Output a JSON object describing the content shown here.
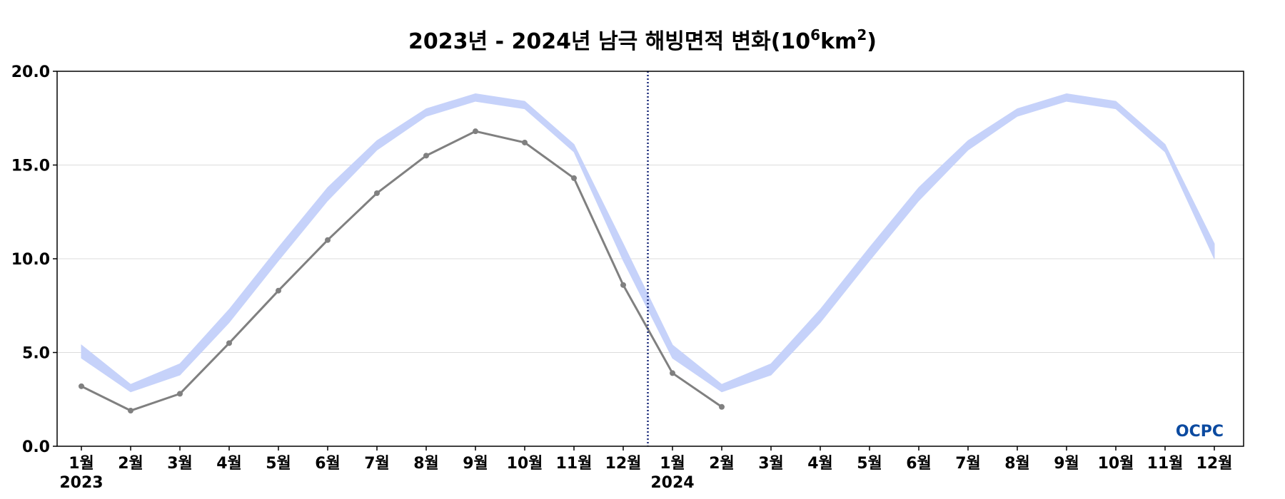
{
  "chart_data": {
    "type": "line",
    "title_parts": {
      "main": "2023년 - 2024년 남극 해빙면적 변화(10",
      "sup1": "6",
      "mid": "km",
      "sup2": "2",
      "end": ")"
    },
    "x_month_labels": [
      "1월",
      "2월",
      "3월",
      "4월",
      "5월",
      "6월",
      "7월",
      "8월",
      "9월",
      "10월",
      "11월",
      "12월",
      "1월",
      "2월",
      "3월",
      "4월",
      "5월",
      "6월",
      "7월",
      "8월",
      "9월",
      "10월",
      "11월",
      "12월"
    ],
    "year_labels": [
      "2023",
      "2024"
    ],
    "ylim": [
      0,
      20
    ],
    "yticks": [
      "0.0",
      "5.0",
      "10.0",
      "15.0",
      "20.0"
    ],
    "grid": true,
    "series": [
      {
        "role": "climatology-band",
        "color": "#c6d2fa",
        "lower": [
          4.7,
          2.9,
          3.8,
          6.6,
          9.9,
          13.1,
          15.8,
          17.6,
          18.4,
          18.0,
          15.7,
          9.9,
          4.7,
          2.9,
          3.8,
          6.6,
          9.9,
          13.1,
          15.8,
          17.6,
          18.4,
          18.0,
          15.7,
          10.0
        ],
        "upper": [
          5.4,
          3.3,
          4.4,
          7.3,
          10.6,
          13.8,
          16.3,
          18.0,
          18.8,
          18.4,
          16.1,
          10.8,
          5.4,
          3.3,
          4.4,
          7.3,
          10.6,
          13.8,
          16.3,
          18.0,
          18.8,
          18.4,
          16.1,
          10.8
        ]
      },
      {
        "role": "observed",
        "color": "#808080",
        "values": [
          3.2,
          1.9,
          2.8,
          5.5,
          8.3,
          11.0,
          13.5,
          15.5,
          16.8,
          16.2,
          14.3,
          8.6,
          3.9,
          2.1
        ]
      }
    ],
    "divider": {
      "between_index": [
        11,
        12
      ],
      "color": "#1a2a7a",
      "style": "dotted"
    },
    "logo": {
      "text": "OCPC",
      "colors": [
        "#0b4aa0",
        "#3fa7d6"
      ],
      "placement": "bottom-right"
    }
  }
}
